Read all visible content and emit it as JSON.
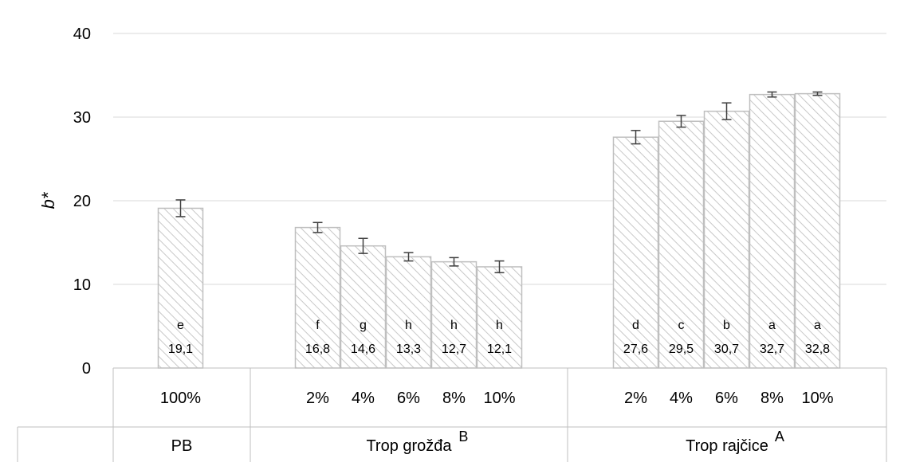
{
  "chart_data": {
    "type": "bar",
    "ylabel": "b*",
    "ylim": [
      0,
      40
    ],
    "yticks": [
      "0",
      "10",
      "20",
      "30",
      "40"
    ],
    "grid": true,
    "groups": [
      {
        "name": "PB",
        "superscript": "",
        "bars": [
          {
            "category": "100%",
            "value": 19.1,
            "error": 1.0,
            "letter": "e",
            "label": "19,1"
          }
        ]
      },
      {
        "name": "Trop grožđa",
        "superscript": "B",
        "bars": [
          {
            "category": "2%",
            "value": 16.8,
            "error": 0.6,
            "letter": "f",
            "label": "16,8"
          },
          {
            "category": "4%",
            "value": 14.6,
            "error": 0.9,
            "letter": "g",
            "label": "14,6"
          },
          {
            "category": "6%",
            "value": 13.3,
            "error": 0.5,
            "letter": "h",
            "label": "13,3"
          },
          {
            "category": "8%",
            "value": 12.7,
            "error": 0.5,
            "letter": "h",
            "label": "12,7"
          },
          {
            "category": "10%",
            "value": 12.1,
            "error": 0.7,
            "letter": "h",
            "label": "12,1"
          }
        ]
      },
      {
        "name": "Trop rajčice",
        "superscript": "A",
        "bars": [
          {
            "category": "2%",
            "value": 27.6,
            "error": 0.8,
            "letter": "d",
            "label": "27,6"
          },
          {
            "category": "4%",
            "value": 29.5,
            "error": 0.7,
            "letter": "c",
            "label": "29,5"
          },
          {
            "category": "6%",
            "value": 30.7,
            "error": 1.0,
            "letter": "b",
            "label": "30,7"
          },
          {
            "category": "8%",
            "value": 32.7,
            "error": 0.3,
            "letter": "a",
            "label": "32,7"
          },
          {
            "category": "10%",
            "value": 32.8,
            "error": 0.2,
            "letter": "a",
            "label": "32,8"
          }
        ]
      }
    ],
    "colors": {
      "bar_fill": "#ffffff",
      "bar_hatch": "#c8c8c8",
      "bar_stroke": "#bfbfbf",
      "gridline": "#d9d9d9",
      "error_bar": "#404040",
      "axis": "#bfbfbf"
    }
  }
}
